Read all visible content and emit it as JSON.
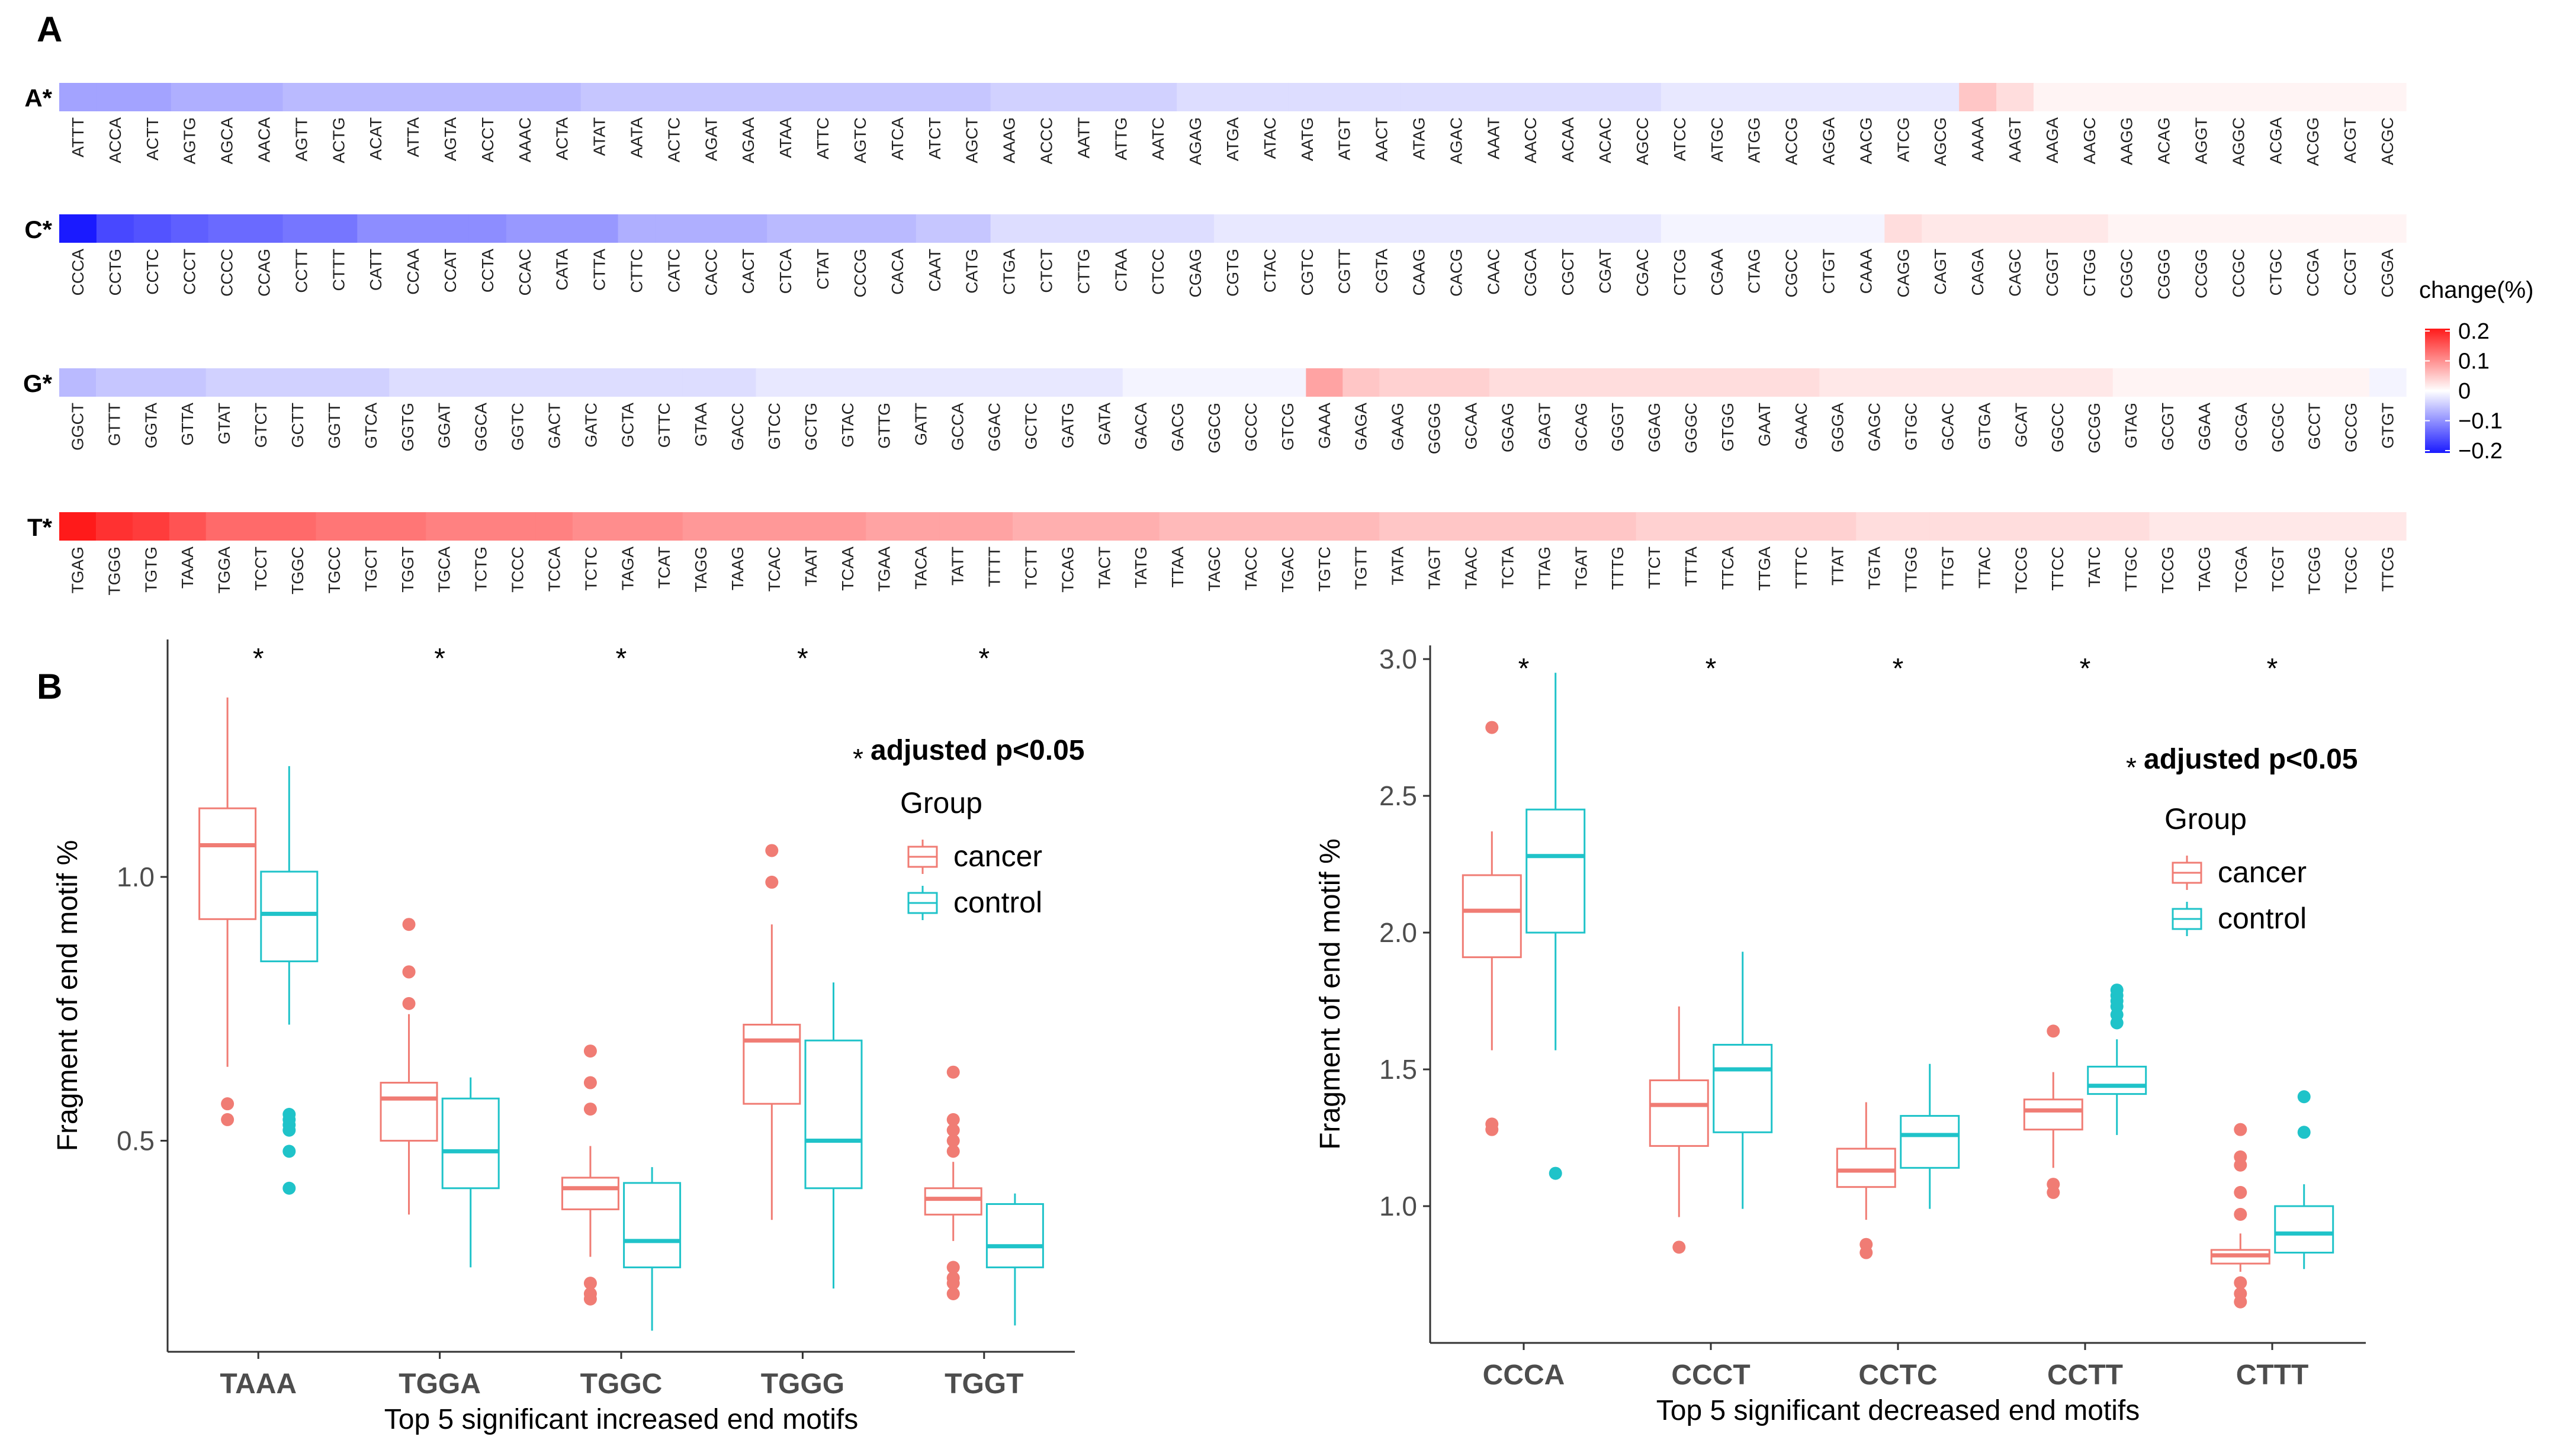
{
  "panel_labels": {
    "a": "A",
    "b": "B"
  },
  "colors": {
    "neg": "#1a1aff",
    "mid": "#ffffff",
    "pos": "#ff1a1a",
    "cancer": "#f07c74",
    "control": "#1fc3c9",
    "axis": "#333333"
  },
  "heatmap": {
    "legend": {
      "title": "change(%)",
      "ticks": [
        "0.2",
        "0.1",
        "0",
        "−0.1",
        "−0.2"
      ],
      "min": -0.2,
      "max": 0.2
    },
    "rows": [
      {
        "label": "A*",
        "motifs": [
          "ATTT",
          "ACCA",
          "ACTT",
          "AGTG",
          "AGCA",
          "AACA",
          "AGTT",
          "ACTG",
          "ACAT",
          "ATTA",
          "AGTA",
          "ACCT",
          "AAAC",
          "ACTA",
          "ATAT",
          "AATA",
          "ACTC",
          "AGAT",
          "AGAA",
          "ATAA",
          "ATTC",
          "AGTC",
          "ATCA",
          "ATCT",
          "AGCT",
          "AAAG",
          "ACCC",
          "AATT",
          "ATTG",
          "AATC",
          "AGAG",
          "ATGA",
          "ATAC",
          "AATG",
          "ATGT",
          "AACT",
          "ATAG",
          "AGAC",
          "AAAT",
          "AACC",
          "ACAA",
          "ACAC",
          "AGCC",
          "ATCC",
          "ATGC",
          "ATGG",
          "ACCG",
          "AGGA",
          "AACG",
          "ATCG",
          "AGCG",
          "AAAA",
          "AAGT",
          "AAGA",
          "AAGC",
          "AAGG",
          "ACAG",
          "AGGT",
          "AGGC",
          "ACGA",
          "ACGG",
          "ACGT",
          "ACGC"
        ],
        "values": [
          -0.08,
          -0.08,
          -0.08,
          -0.07,
          -0.07,
          -0.07,
          -0.06,
          -0.06,
          -0.06,
          -0.06,
          -0.06,
          -0.06,
          -0.06,
          -0.06,
          -0.05,
          -0.05,
          -0.05,
          -0.05,
          -0.05,
          -0.05,
          -0.05,
          -0.05,
          -0.05,
          -0.05,
          -0.05,
          -0.04,
          -0.04,
          -0.04,
          -0.04,
          -0.04,
          -0.03,
          -0.03,
          -0.03,
          -0.03,
          -0.03,
          -0.03,
          -0.03,
          -0.03,
          -0.03,
          -0.03,
          -0.03,
          -0.03,
          -0.03,
          -0.02,
          -0.02,
          -0.02,
          -0.02,
          -0.02,
          -0.02,
          -0.02,
          -0.02,
          0.05,
          0.03,
          0.01,
          0.01,
          0.01,
          0.01,
          0.01,
          0.01,
          0.01,
          0.01,
          0.01,
          0.01
        ]
      },
      {
        "label": "C*",
        "motifs": [
          "CCCA",
          "CCTG",
          "CCTC",
          "CCCT",
          "CCCC",
          "CCAG",
          "CCTT",
          "CTTT",
          "CATT",
          "CCAA",
          "CCAT",
          "CCTA",
          "CCAC",
          "CATA",
          "CTTA",
          "CTTC",
          "CATC",
          "CACC",
          "CACT",
          "CTCA",
          "CTAT",
          "CCCG",
          "CACA",
          "CAAT",
          "CATG",
          "CTGA",
          "CTCT",
          "CTTG",
          "CTAA",
          "CTCC",
          "CGAG",
          "CGTG",
          "CTAC",
          "CGTC",
          "CGTT",
          "CGTA",
          "CAAG",
          "CACG",
          "CAAC",
          "CGCA",
          "CGCT",
          "CGAT",
          "CGAC",
          "CTCG",
          "CGAA",
          "CTAG",
          "CGCC",
          "CTGT",
          "CAAA",
          "CAGG",
          "CAGT",
          "CAGA",
          "CAGC",
          "CGGT",
          "CTGG",
          "CGGC",
          "CGGG",
          "CCGG",
          "CCGC",
          "CTGC",
          "CCGA",
          "CCGT",
          "CGGA"
        ],
        "values": [
          -0.2,
          -0.16,
          -0.15,
          -0.14,
          -0.13,
          -0.13,
          -0.12,
          -0.12,
          -0.1,
          -0.1,
          -0.1,
          -0.1,
          -0.09,
          -0.09,
          -0.09,
          -0.07,
          -0.07,
          -0.07,
          -0.07,
          -0.06,
          -0.06,
          -0.06,
          -0.06,
          -0.05,
          -0.05,
          -0.03,
          -0.03,
          -0.03,
          -0.03,
          -0.03,
          -0.03,
          -0.02,
          -0.02,
          -0.02,
          -0.02,
          -0.02,
          -0.02,
          -0.02,
          -0.02,
          -0.02,
          -0.02,
          -0.02,
          -0.02,
          -0.01,
          -0.01,
          -0.01,
          -0.01,
          -0.01,
          -0.01,
          0.03,
          0.02,
          0.02,
          0.02,
          0.02,
          0.02,
          0.01,
          0.01,
          0.01,
          0.01,
          0.01,
          0.01,
          0.01,
          0.01
        ]
      },
      {
        "label": "G*",
        "motifs": [
          "GGCT",
          "GTTT",
          "GGTA",
          "GTTA",
          "GTAT",
          "GTCT",
          "GCTT",
          "GGTT",
          "GTCA",
          "GGTG",
          "GGAT",
          "GGCA",
          "GGTC",
          "GACT",
          "GATC",
          "GCTA",
          "GTTC",
          "GTAA",
          "GACC",
          "GTCC",
          "GCTG",
          "GTAC",
          "GTTG",
          "GATT",
          "GCCA",
          "GGAC",
          "GCTC",
          "GATG",
          "GATA",
          "GACA",
          "GACG",
          "GGCG",
          "GCCC",
          "GTCG",
          "GAAA",
          "GAGA",
          "GAAG",
          "GGGG",
          "GCAA",
          "GGAG",
          "GAGT",
          "GCAG",
          "GGGT",
          "GGAG",
          "GGGC",
          "GTGG",
          "GAAT",
          "GAAC",
          "GGGA",
          "GAGC",
          "GTGC",
          "GCAC",
          "GTGA",
          "GCAT",
          "GGCC",
          "GCGG",
          "GTAG",
          "GCGT",
          "GGAA",
          "GCGA",
          "GCGC",
          "GCCT",
          "GCCG",
          "GTGT"
        ],
        "values": [
          -0.06,
          -0.05,
          -0.05,
          -0.05,
          -0.04,
          -0.04,
          -0.04,
          -0.04,
          -0.04,
          -0.03,
          -0.03,
          -0.03,
          -0.03,
          -0.03,
          -0.03,
          -0.03,
          -0.03,
          -0.03,
          -0.03,
          -0.02,
          -0.02,
          -0.02,
          -0.02,
          -0.02,
          -0.02,
          -0.02,
          -0.02,
          -0.02,
          -0.02,
          -0.01,
          -0.01,
          -0.01,
          -0.01,
          -0.01,
          0.08,
          0.05,
          0.04,
          0.04,
          0.04,
          0.03,
          0.03,
          0.03,
          0.03,
          0.03,
          0.03,
          0.03,
          0.03,
          0.03,
          0.02,
          0.02,
          0.02,
          0.02,
          0.02,
          0.02,
          0.02,
          0.02,
          0.01,
          0.01,
          0.01,
          0.01,
          0.01,
          0.01,
          0.01,
          -0.01
        ]
      },
      {
        "label": "T*",
        "motifs": [
          "TGAG",
          "TGGG",
          "TGTG",
          "TAAA",
          "TGGA",
          "TCCT",
          "TGGC",
          "TGCC",
          "TGCT",
          "TGGT",
          "TGCA",
          "TCTG",
          "TCCC",
          "TCCA",
          "TCTC",
          "TAGA",
          "TCAT",
          "TAGG",
          "TAAG",
          "TCAC",
          "TAAT",
          "TCAA",
          "TGAA",
          "TACA",
          "TATT",
          "TTTT",
          "TCTT",
          "TCAG",
          "TACT",
          "TATG",
          "TTAA",
          "TAGC",
          "TACC",
          "TGAC",
          "TGTC",
          "TGTT",
          "TATA",
          "TAGT",
          "TAAC",
          "TCTA",
          "TTAG",
          "TGAT",
          "TTTG",
          "TTCT",
          "TTTA",
          "TTCA",
          "TTGA",
          "TTTC",
          "TTAT",
          "TGTA",
          "TTGG",
          "TTGT",
          "TTAC",
          "TCCG",
          "TTCC",
          "TATC",
          "TTGC",
          "TCCG",
          "TACG",
          "TCGA",
          "TCGT",
          "TCGG",
          "TCGC",
          "TTCG"
        ],
        "values": [
          0.2,
          0.18,
          0.17,
          0.15,
          0.13,
          0.13,
          0.13,
          0.12,
          0.12,
          0.12,
          0.11,
          0.11,
          0.11,
          0.11,
          0.1,
          0.1,
          0.1,
          0.09,
          0.09,
          0.09,
          0.09,
          0.09,
          0.08,
          0.08,
          0.08,
          0.08,
          0.07,
          0.07,
          0.07,
          0.07,
          0.06,
          0.06,
          0.06,
          0.06,
          0.06,
          0.06,
          0.05,
          0.05,
          0.05,
          0.05,
          0.05,
          0.05,
          0.05,
          0.04,
          0.04,
          0.04,
          0.04,
          0.04,
          0.04,
          0.03,
          0.03,
          0.03,
          0.03,
          0.03,
          0.03,
          0.03,
          0.03,
          0.02,
          0.02,
          0.02,
          0.02,
          0.02,
          0.02,
          0.02
        ]
      }
    ]
  },
  "chart_data": [
    {
      "type": "box",
      "title": "",
      "xlabel": "Top 5 significant increased end motifs",
      "ylabel": "Fragment of end motif %",
      "ylim": [
        0.1,
        1.45
      ],
      "yticks": [
        "0.5",
        "1.0"
      ],
      "categories": [
        "TAAA",
        "TGGA",
        "TGGC",
        "TGGG",
        "TGGT"
      ],
      "stars": [
        "*",
        "*",
        "*",
        "*",
        "*"
      ],
      "note_star": "*",
      "note": "adjusted p<0.05",
      "legend_title": "Group",
      "series": [
        {
          "name": "cancer",
          "boxes": [
            {
              "q1": 0.92,
              "median": 1.06,
              "q3": 1.13,
              "low": 0.64,
              "high": 1.34,
              "outliers": [
                0.57,
                0.54
              ]
            },
            {
              "q1": 0.5,
              "median": 0.58,
              "q3": 0.61,
              "low": 0.36,
              "high": 0.74,
              "outliers": [
                0.91,
                0.82,
                0.82,
                0.76
              ]
            },
            {
              "q1": 0.37,
              "median": 0.41,
              "q3": 0.43,
              "low": 0.28,
              "high": 0.49,
              "outliers": [
                0.67,
                0.61,
                0.56,
                0.23,
                0.21,
                0.2
              ]
            },
            {
              "q1": 0.57,
              "median": 0.69,
              "q3": 0.72,
              "low": 0.35,
              "high": 0.91,
              "outliers": [
                1.05,
                0.99
              ]
            },
            {
              "q1": 0.36,
              "median": 0.39,
              "q3": 0.41,
              "low": 0.31,
              "high": 0.46,
              "outliers": [
                0.63,
                0.54,
                0.52,
                0.5,
                0.48,
                0.26,
                0.24,
                0.23,
                0.21
              ]
            }
          ]
        },
        {
          "name": "control",
          "boxes": [
            {
              "q1": 0.84,
              "median": 0.93,
              "q3": 1.01,
              "low": 0.72,
              "high": 1.21,
              "outliers": [
                0.55,
                0.54,
                0.53,
                0.52,
                0.48,
                0.41
              ]
            },
            {
              "q1": 0.41,
              "median": 0.48,
              "q3": 0.58,
              "low": 0.26,
              "high": 0.62,
              "outliers": []
            },
            {
              "q1": 0.26,
              "median": 0.31,
              "q3": 0.42,
              "low": 0.14,
              "high": 0.45,
              "outliers": []
            },
            {
              "q1": 0.41,
              "median": 0.5,
              "q3": 0.69,
              "low": 0.22,
              "high": 0.8,
              "outliers": []
            },
            {
              "q1": 0.26,
              "median": 0.3,
              "q3": 0.38,
              "low": 0.15,
              "high": 0.4,
              "outliers": []
            }
          ]
        }
      ]
    },
    {
      "type": "box",
      "title": "",
      "xlabel": "Top 5 significant decreased end motifs",
      "ylabel": "Fragment of end motif %",
      "ylim": [
        0.5,
        3.05
      ],
      "yticks": [
        "1.0",
        "1.5",
        "2.0",
        "2.5",
        "3.0"
      ],
      "categories": [
        "CCCA",
        "CCCT",
        "CCTC",
        "CCTT",
        "CTTT"
      ],
      "stars": [
        "*",
        "*",
        "*",
        "*",
        "*"
      ],
      "note_star": "*",
      "note": "adjusted p<0.05",
      "legend_title": "Group",
      "series": [
        {
          "name": "cancer",
          "boxes": [
            {
              "q1": 1.91,
              "median": 2.08,
              "q3": 2.21,
              "low": 1.57,
              "high": 2.37,
              "outliers": [
                2.75,
                1.3,
                1.28
              ]
            },
            {
              "q1": 1.22,
              "median": 1.37,
              "q3": 1.46,
              "low": 0.96,
              "high": 1.73,
              "outliers": [
                0.85
              ]
            },
            {
              "q1": 1.07,
              "median": 1.13,
              "q3": 1.21,
              "low": 0.95,
              "high": 1.38,
              "outliers": [
                0.86,
                0.83
              ]
            },
            {
              "q1": 1.28,
              "median": 1.35,
              "q3": 1.39,
              "low": 1.14,
              "high": 1.49,
              "outliers": [
                1.64,
                1.08,
                1.05
              ]
            },
            {
              "q1": 0.79,
              "median": 0.82,
              "q3": 0.84,
              "low": 0.76,
              "high": 0.9,
              "outliers": [
                1.28,
                1.18,
                1.15,
                1.05,
                0.97,
                0.72,
                0.68,
                0.65
              ]
            }
          ]
        },
        {
          "name": "control",
          "boxes": [
            {
              "q1": 2.0,
              "median": 2.28,
              "q3": 2.45,
              "low": 1.57,
              "high": 2.95,
              "outliers": [
                1.12
              ]
            },
            {
              "q1": 1.27,
              "median": 1.5,
              "q3": 1.59,
              "low": 0.99,
              "high": 1.93,
              "outliers": []
            },
            {
              "q1": 1.14,
              "median": 1.26,
              "q3": 1.33,
              "low": 0.99,
              "high": 1.52,
              "outliers": []
            },
            {
              "q1": 1.41,
              "median": 1.44,
              "q3": 1.51,
              "low": 1.26,
              "high": 1.61,
              "outliers": [
                1.79,
                1.77,
                1.75,
                1.73,
                1.7,
                1.67
              ]
            },
            {
              "q1": 0.83,
              "median": 0.9,
              "q3": 1.0,
              "low": 0.77,
              "high": 1.08,
              "outliers": [
                1.4,
                1.27
              ]
            }
          ]
        }
      ]
    }
  ]
}
